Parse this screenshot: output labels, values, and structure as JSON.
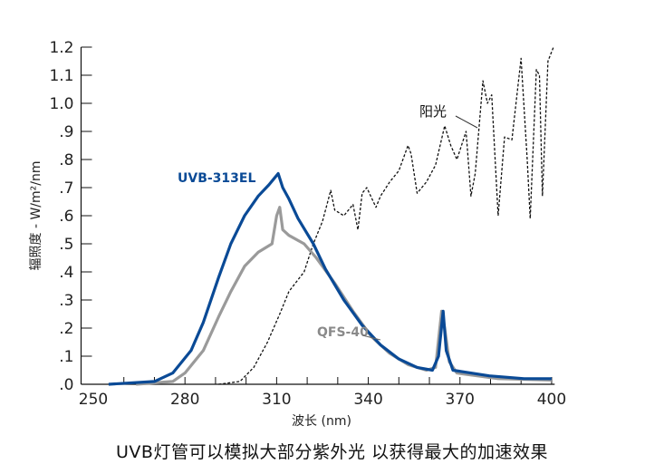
{
  "chart_data": {
    "type": "line",
    "title": "",
    "xlabel": "波长 (nm)",
    "ylabel": "辐照度 - W/m²/nm",
    "xlim": [
      246,
      401
    ],
    "ylim": [
      0,
      1.2
    ],
    "xticks": [
      250,
      280,
      310,
      340,
      370,
      400
    ],
    "xtick_labels": [
      "250",
      "280",
      "310",
      "340",
      "370",
      "400"
    ],
    "yticks": [
      0,
      0.1,
      0.2,
      0.3,
      0.4,
      0.5,
      0.6,
      0.7,
      0.8,
      0.9,
      1.0,
      1.1,
      1.2
    ],
    "ytick_labels": [
      ".0",
      ".1",
      ".2",
      ".3",
      ".4",
      ".5",
      ".6",
      ".7",
      ".8",
      ".9",
      "1.0",
      "1.1",
      "1.2"
    ],
    "grid": false,
    "series": [
      {
        "name": "UVB-313EL",
        "color": "#0a4a96",
        "style": "solid",
        "x": [
          255,
          270,
          276,
          282,
          286,
          291,
          295,
          299.5,
          304,
          307.5,
          309,
          310.5,
          312,
          314,
          317,
          322,
          326,
          332,
          338,
          344,
          350,
          356,
          361,
          363,
          364.5,
          365.5,
          367.7,
          379.6,
          391,
          400
        ],
        "y": [
          0,
          0.01,
          0.04,
          0.12,
          0.22,
          0.38,
          0.5,
          0.6,
          0.67,
          0.71,
          0.73,
          0.75,
          0.7,
          0.66,
          0.59,
          0.5,
          0.41,
          0.3,
          0.21,
          0.14,
          0.09,
          0.06,
          0.05,
          0.1,
          0.26,
          0.12,
          0.05,
          0.03,
          0.02,
          0.02
        ]
      },
      {
        "name": "QFS-40",
        "color": "#9a9a9a",
        "style": "solid",
        "x": [
          264,
          276,
          280,
          286,
          291,
          295,
          299.5,
          304,
          308.5,
          310,
          311,
          312,
          314,
          319,
          323,
          329,
          335,
          341,
          347,
          353,
          359,
          362,
          364,
          365,
          366.5,
          369,
          382.5,
          400
        ],
        "y": [
          0,
          0.01,
          0.04,
          0.12,
          0.24,
          0.33,
          0.42,
          0.47,
          0.5,
          0.6,
          0.63,
          0.55,
          0.53,
          0.5,
          0.45,
          0.36,
          0.26,
          0.17,
          0.11,
          0.07,
          0.05,
          0.06,
          0.26,
          0.2,
          0.08,
          0.04,
          0.02,
          0.015
        ]
      },
      {
        "name": "阳光",
        "color": "#111111",
        "style": "dashed",
        "x": [
          291,
          298,
          302.5,
          307,
          311,
          314,
          319,
          322,
          325,
          327.7,
          329,
          332,
          335,
          336.6,
          338,
          339.5,
          342.5,
          344,
          347,
          350,
          353,
          354,
          356,
          359,
          362,
          365,
          367,
          369,
          372,
          373.6,
          375,
          377.5,
          379,
          380.4,
          382.5,
          384.6,
          387,
          390,
          392,
          393,
          395,
          396,
          397,
          398.8,
          400.6
        ],
        "y": [
          0,
          0.01,
          0.06,
          0.15,
          0.25,
          0.33,
          0.4,
          0.5,
          0.58,
          0.69,
          0.62,
          0.6,
          0.64,
          0.55,
          0.68,
          0.7,
          0.63,
          0.67,
          0.72,
          0.76,
          0.85,
          0.82,
          0.68,
          0.72,
          0.78,
          0.92,
          0.85,
          0.8,
          0.9,
          0.67,
          0.75,
          1.08,
          1.0,
          1.03,
          0.6,
          0.88,
          0.87,
          1.16,
          0.8,
          0.59,
          1.12,
          1.1,
          0.67,
          1.15,
          1.28
        ]
      }
    ],
    "annotations": [
      "UVB-313EL",
      "QFS-40",
      "阳光"
    ]
  },
  "caption": "UVB灯管可以模拟大部分紫外光 以获得最大的加速效果"
}
